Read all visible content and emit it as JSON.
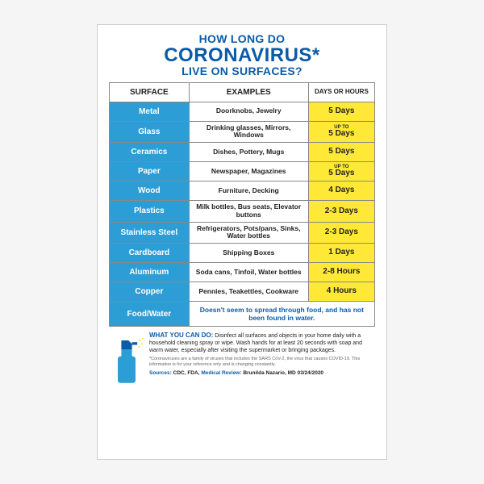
{
  "title": {
    "line1": "HOW LONG DO",
    "big": "CORONAVIRUS*",
    "line3": "LIVE ON SURFACES?"
  },
  "colors": {
    "title": "#0a5ba8",
    "surface_bg": "#2d9dd6",
    "duration_bg": "#ffe936",
    "border": "#888888",
    "background": "#ffffff"
  },
  "table": {
    "headers": {
      "surface": "SURFACE",
      "examples": "EXAMPLES",
      "days": "DAYS OR HOURS"
    },
    "rows": [
      {
        "surface": "Metal",
        "examples": "Doorknobs, Jewelry",
        "duration": "5 Days",
        "upto": false
      },
      {
        "surface": "Glass",
        "examples": "Drinking glasses, Mirrors, Windows",
        "duration": "5 Days",
        "upto": true
      },
      {
        "surface": "Ceramics",
        "examples": "Dishes, Pottery, Mugs",
        "duration": "5 Days",
        "upto": false
      },
      {
        "surface": "Paper",
        "examples": "Newspaper, Magazines",
        "duration": "5 Days",
        "upto": true
      },
      {
        "surface": "Wood",
        "examples": "Furniture, Decking",
        "duration": "4 Days",
        "upto": false
      },
      {
        "surface": "Plastics",
        "examples": "Milk bottles, Bus seats, Elevator buttons",
        "duration": "2-3 Days",
        "upto": false
      },
      {
        "surface": "Stainless Steel",
        "examples": "Refrigerators, Pots/pans, Sinks, Water bottles",
        "duration": "2-3 Days",
        "upto": false
      },
      {
        "surface": "Cardboard",
        "examples": "Shipping Boxes",
        "duration": "1 Days",
        "upto": false
      },
      {
        "surface": "Aluminum",
        "examples": "Soda cans, Tinfoil, Water bottles",
        "duration": "2-8 Hours",
        "upto": false
      },
      {
        "surface": "Copper",
        "examples": "Pennies, Teakettles, Cookware",
        "duration": "4 Hours",
        "upto": false
      }
    ],
    "foodwater": {
      "surface": "Food/Water",
      "note": "Doesn't seem to spread through food, and has not been found in water."
    }
  },
  "footer": {
    "wycd_label": "WHAT YOU CAN DO:",
    "wycd_text": " Disinfect all surfaces and objects in your home daily with a household cleaning spray or wipe. Wash hands for at least 20 seconds with soap and warm water, especially after visiting the supermarket or bringing packages.",
    "footnote": "*Coronaviruses are a family of viruses that includes the SARS CoV-2, the virus that causes COVID-19. This information is for your reference only and is changing constantly.",
    "sources_label": "Sources:",
    "sources_val": " CDC, FDA, ",
    "medrev_label": "Medical Review:",
    "medrev_val": " Brunilda Nazario, MD 03/24/2020"
  },
  "upto_label": "UP TO"
}
